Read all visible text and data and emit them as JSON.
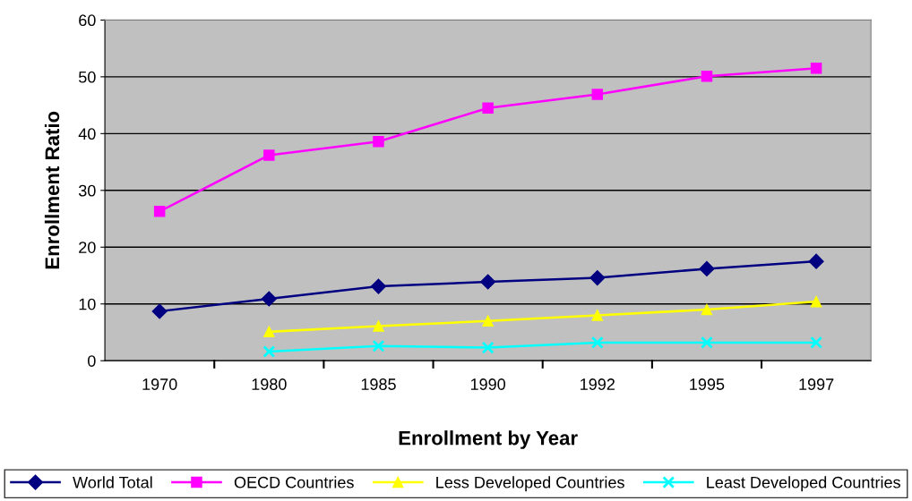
{
  "chart_data": {
    "type": "line",
    "xlabel": "Enrollment by Year",
    "ylabel": "Enrollment Ratio",
    "categories": [
      "1970",
      "1980",
      "1985",
      "1990",
      "1992",
      "1995",
      "1997"
    ],
    "series": [
      {
        "name": "World Total",
        "color": "#000080",
        "marker": "diamond",
        "values": [
          8.7,
          10.9,
          13.1,
          13.9,
          14.6,
          16.2,
          17.5
        ]
      },
      {
        "name": "OECD Countries",
        "color": "#ff00ff",
        "marker": "square",
        "values": [
          26.3,
          36.2,
          38.6,
          44.5,
          46.9,
          50.1,
          51.5
        ]
      },
      {
        "name": "Less Developed Countries",
        "color": "#ffff00",
        "marker": "triangle",
        "values": [
          null,
          5.1,
          6.1,
          7.0,
          8.0,
          9.0,
          10.4
        ]
      },
      {
        "name": "Least Developed Countries",
        "color": "#00ffff",
        "marker": "cross",
        "values": [
          null,
          1.6,
          2.6,
          2.3,
          3.2,
          3.2,
          3.2
        ]
      }
    ],
    "ylim": [
      0,
      60
    ],
    "yticks": [
      0,
      10,
      20,
      30,
      40,
      50,
      60
    ],
    "grid": "y",
    "legend": "bottom"
  }
}
